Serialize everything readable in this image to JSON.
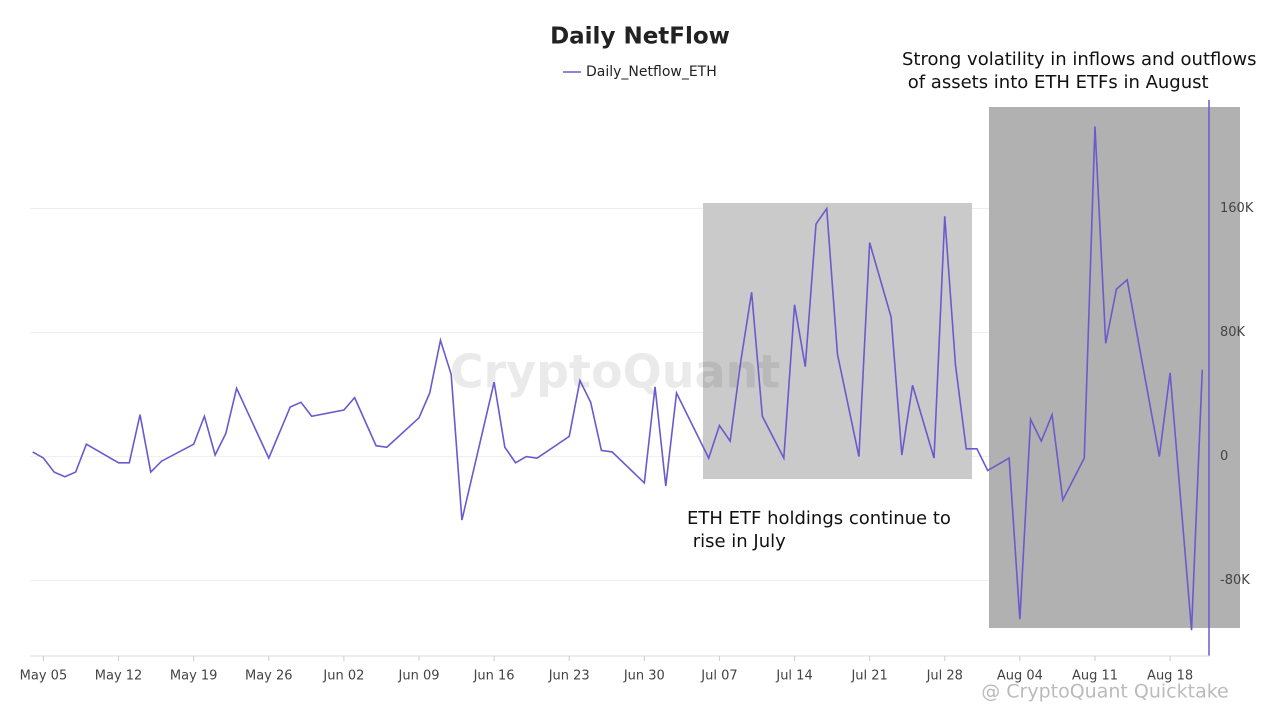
{
  "chart_data": {
    "type": "line",
    "title": "Daily NetFlow",
    "x": [
      "May 04",
      "May 05",
      "May 06",
      "May 07",
      "May 08",
      "May 09",
      "May 12",
      "May 13",
      "May 14",
      "May 15",
      "May 16",
      "May 19",
      "May 20",
      "May 21",
      "May 22",
      "May 23",
      "May 26",
      "May 28",
      "May 29",
      "May 30",
      "Jun 02",
      "Jun 03",
      "Jun 05",
      "Jun 06",
      "Jun 09",
      "Jun 10",
      "Jun 11",
      "Jun 12",
      "Jun 13",
      "Jun 16",
      "Jun 17",
      "Jun 18",
      "Jun 19",
      "Jun 20",
      "Jun 23",
      "Jun 24",
      "Jun 25",
      "Jun 26",
      "Jun 27",
      "Jun 30",
      "Jul 01",
      "Jul 02",
      "Jul 03",
      "Jul 06",
      "Jul 07",
      "Jul 08",
      "Jul 09",
      "Jul 10",
      "Jul 11",
      "Jul 13",
      "Jul 14",
      "Jul 15",
      "Jul 16",
      "Jul 17",
      "Jul 18",
      "Jul 20",
      "Jul 21",
      "Jul 23",
      "Jul 24",
      "Jul 25",
      "Jul 27",
      "Jul 28",
      "Jul 29",
      "Jul 30",
      "Jul 31",
      "Aug 01",
      "Aug 03",
      "Aug 04",
      "Aug 05",
      "Aug 06",
      "Aug 07",
      "Aug 08",
      "Aug 10",
      "Aug 11",
      "Aug 12",
      "Aug 13",
      "Aug 14",
      "Aug 17",
      "Aug 18",
      "Aug 20",
      "Aug 21"
    ],
    "series": [
      {
        "name": "Daily_Netflow_ETH",
        "color": "#6a5acd",
        "values": [
          3000,
          -1000,
          -10000,
          -13000,
          -10000,
          8000,
          -4000,
          -4000,
          27000,
          -10000,
          -3000,
          8000,
          26000,
          1000,
          15000,
          44000,
          -1000,
          32000,
          35000,
          26000,
          30000,
          38000,
          7000,
          6000,
          25000,
          41000,
          75000,
          53000,
          -41000,
          48000,
          6000,
          -4000,
          0,
          -1000,
          13000,
          49000,
          35000,
          4000,
          3000,
          -17000,
          45000,
          -19000,
          41000,
          -1000,
          20000,
          10000,
          62000,
          106000,
          26000,
          -1000,
          98000,
          58000,
          150000,
          160000,
          66000,
          0,
          138000,
          90000,
          1000,
          46000,
          -1000,
          155000,
          59000,
          5000,
          5000,
          -9000,
          -1000,
          -105000,
          24000,
          10000,
          27000,
          -28000,
          -1000,
          213000,
          73000,
          108000,
          114000,
          0,
          54000,
          -112000,
          56000
        ]
      }
    ],
    "xlim": [
      "May 03",
      "Aug 22"
    ],
    "xticks": [
      "May 05",
      "May 12",
      "May 19",
      "May 26",
      "Jun 02",
      "Jun 09",
      "Jun 16",
      "Jun 23",
      "Jun 30",
      "Jul 07",
      "Jul 14",
      "Jul 21",
      "Jul 28",
      "Aug 04",
      "Aug 11",
      "Aug 18"
    ],
    "ylim": [
      -128000,
      230000
    ],
    "yticks": [
      {
        "value": -80000,
        "label": "-80K"
      },
      0,
      {
        "value": 80000,
        "label": "80K"
      },
      {
        "value": 160000,
        "label": "160K"
      }
    ],
    "grid": true,
    "annotations": [
      {
        "lines": [
          "ETH ETF holdings continue to",
          " rise in July"
        ]
      },
      {
        "lines": [
          "Strong volatility in inflows and outflows",
          " of assets into ETH ETFs in August"
        ]
      }
    ],
    "watermark": "CryptoQuant",
    "credit": "@ CryptoQuant Quicktake"
  }
}
